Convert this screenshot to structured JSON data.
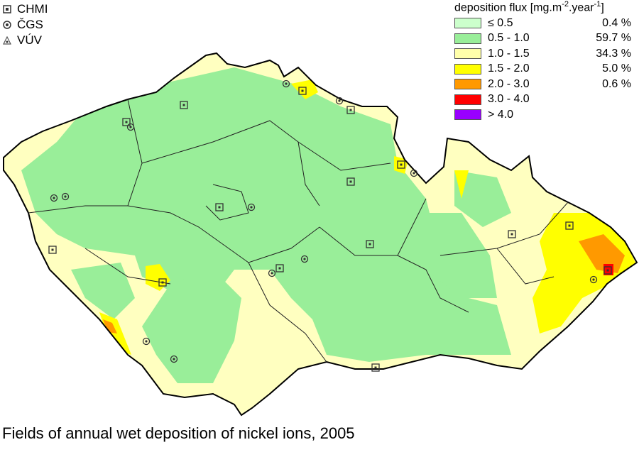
{
  "stations_legend": [
    {
      "label": "CHMI",
      "icon": "square-dot-icon"
    },
    {
      "label": "ČGS",
      "icon": "circle-dot-icon"
    },
    {
      "label": "VÚV",
      "icon": "triangle-dot-icon"
    }
  ],
  "legend": {
    "title": "deposition flux [mg.m",
    "title_exp1": "-2",
    "title_mid": ".year",
    "title_exp2": "-1",
    "title_end": "]",
    "items": [
      {
        "label": "≤ 0.5",
        "percent": "0.4 %",
        "color": "#ccffcc"
      },
      {
        "label": "0.5 - 1.0",
        "percent": "59.7 %",
        "color": "#99ee99"
      },
      {
        "label": "1.0 - 1.5",
        "percent": "34.3 %",
        "color": "#ffffaa"
      },
      {
        "label": "1.5 - 2.0",
        "percent": "5.0 %",
        "color": "#ffff00"
      },
      {
        "label": "2.0 - 3.0",
        "percent": "0.6 %",
        "color": "#ff9900"
      },
      {
        "label": "3.0 - 4.0",
        "percent": "",
        "color": "#ff0000"
      },
      {
        "label": "> 4.0",
        "percent": "",
        "color": "#9900ff"
      }
    ]
  },
  "caption": "Fields of annual wet deposition of nickel ions, 2005"
}
